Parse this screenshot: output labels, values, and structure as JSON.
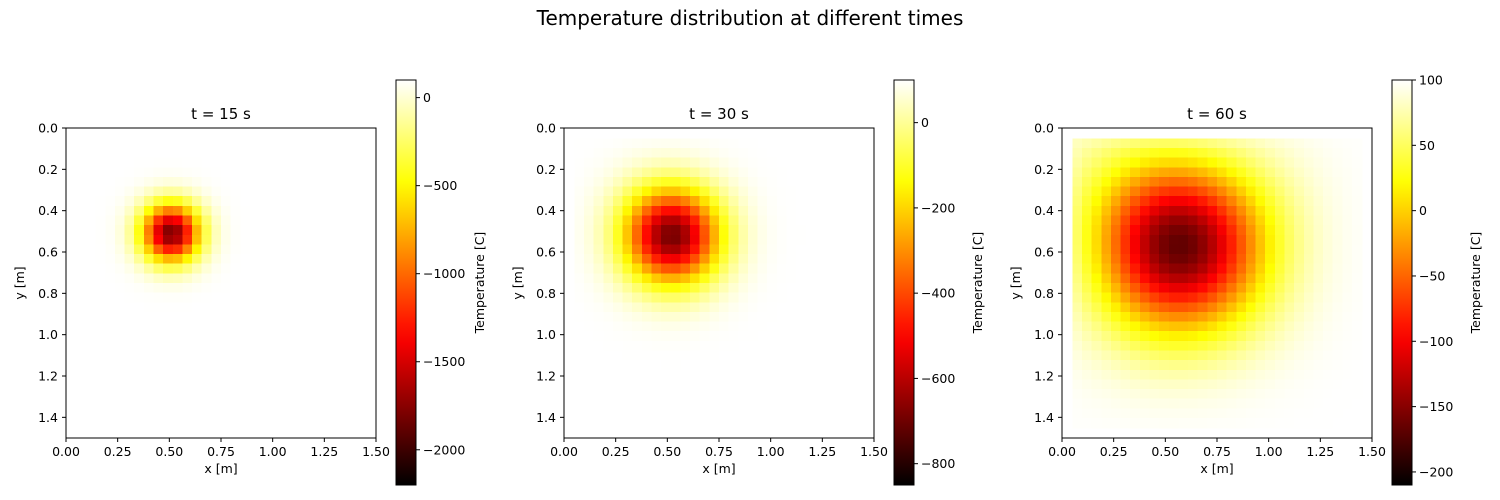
{
  "figure": {
    "title": "Temperature distribution at different times"
  },
  "chart_data": [
    {
      "type": "heatmap",
      "title": "t = 15 s",
      "xlabel": "x [m]",
      "ylabel": "y [m]",
      "colorbar_label": "Temperature [C]",
      "colormap": "hot",
      "xlim": [
        0.0,
        1.5
      ],
      "ylim": [
        1.5,
        0.0
      ],
      "xticks": [
        0.0,
        0.25,
        0.5,
        0.75,
        1.0,
        1.25,
        1.5
      ],
      "xtick_labels": [
        "0.00",
        "0.25",
        "0.50",
        "0.75",
        "1.00",
        "1.25",
        "1.50"
      ],
      "yticks": [
        0.0,
        0.2,
        0.4,
        0.6,
        0.8,
        1.0,
        1.2,
        1.4
      ],
      "ytick_labels": [
        "0.0",
        "0.2",
        "0.4",
        "0.6",
        "0.8",
        "1.0",
        "1.2",
        "1.4"
      ],
      "color_range": [
        -2200,
        100
      ],
      "colorbar_ticks": [
        0,
        -500,
        -1000,
        -1500,
        -2000
      ],
      "colorbar_tick_labels": [
        "0",
        "−500",
        "−1000",
        "−1500",
        "−2000"
      ],
      "grid_cells": 30,
      "interior_extent": [
        0.05,
        1.45
      ],
      "boundary_value": 100,
      "source": {
        "x": 0.5,
        "y": 0.5,
        "min_value": -2200,
        "spread": 0.1
      }
    },
    {
      "type": "heatmap",
      "title": "t = 30 s",
      "xlabel": "x [m]",
      "ylabel": "y [m]",
      "colorbar_label": "Temperature [C]",
      "colormap": "hot",
      "xlim": [
        0.0,
        1.5
      ],
      "ylim": [
        1.5,
        0.0
      ],
      "xticks": [
        0.0,
        0.25,
        0.5,
        0.75,
        1.0,
        1.25,
        1.5
      ],
      "xtick_labels": [
        "0.00",
        "0.25",
        "0.50",
        "0.75",
        "1.00",
        "1.25",
        "1.50"
      ],
      "yticks": [
        0.0,
        0.2,
        0.4,
        0.6,
        0.8,
        1.0,
        1.2,
        1.4
      ],
      "ytick_labels": [
        "0.0",
        "0.2",
        "0.4",
        "0.6",
        "0.8",
        "1.0",
        "1.2",
        "1.4"
      ],
      "color_range": [
        -850,
        100
      ],
      "colorbar_ticks": [
        0,
        -200,
        -400,
        -600,
        -800
      ],
      "colorbar_tick_labels": [
        "0",
        "−200",
        "−400",
        "−600",
        "−800"
      ],
      "grid_cells": 30,
      "interior_extent": [
        0.05,
        1.45
      ],
      "boundary_value": 100,
      "source": {
        "x": 0.5,
        "y": 0.5,
        "min_value": -850,
        "spread": 0.17
      }
    },
    {
      "type": "heatmap",
      "title": "t = 60 s",
      "xlabel": "x [m]",
      "ylabel": "y [m]",
      "colorbar_label": "Temperature [C]",
      "colormap": "hot",
      "xlim": [
        0.0,
        1.5
      ],
      "ylim": [
        1.5,
        0.0
      ],
      "xticks": [
        0.0,
        0.25,
        0.5,
        0.75,
        1.0,
        1.25,
        1.5
      ],
      "xtick_labels": [
        "0.00",
        "0.25",
        "0.50",
        "0.75",
        "1.00",
        "1.25",
        "1.50"
      ],
      "yticks": [
        0.0,
        0.2,
        0.4,
        0.6,
        0.8,
        1.0,
        1.2,
        1.4
      ],
      "ytick_labels": [
        "0.0",
        "0.2",
        "0.4",
        "0.6",
        "0.8",
        "1.0",
        "1.2",
        "1.4"
      ],
      "color_range": [
        -210,
        100
      ],
      "colorbar_ticks": [
        100,
        50,
        0,
        -50,
        -100,
        -150,
        -200
      ],
      "colorbar_tick_labels": [
        "100",
        "50",
        "0",
        "−50",
        "−100",
        "−150",
        "−200"
      ],
      "grid_cells": 30,
      "interior_extent": [
        0.05,
        1.45
      ],
      "boundary_value": 100,
      "source": {
        "x": 0.5,
        "y": 0.5,
        "min_value": -210,
        "spread": 0.34
      }
    }
  ]
}
